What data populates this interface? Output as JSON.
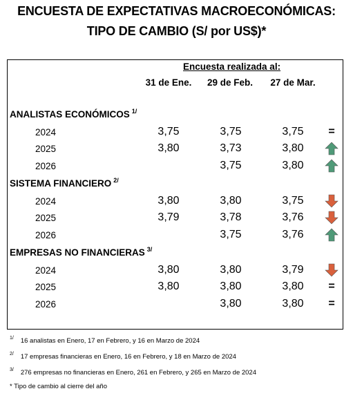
{
  "title_line1": "ENCUESTA DE EXPECTATIVAS MACROECONÓMICAS:",
  "title_line2": "TIPO DE CAMBIO (S/ por US$)*",
  "survey_header": "Encuesta realizada al:",
  "columns": [
    "31 de Ene.",
    "29 de Feb.",
    "27 de Mar."
  ],
  "sections": [
    {
      "name": "ANALISTAS ECONÓMICOS",
      "note": "1/",
      "rows": [
        {
          "year": "2024",
          "values": [
            "3,75",
            "3,75",
            "3,75"
          ],
          "trend": "equal",
          "trend_symbol": "="
        },
        {
          "year": "2025",
          "values": [
            "3,80",
            "3,73",
            "3,80"
          ],
          "trend": "up",
          "trend_symbol": ""
        },
        {
          "year": "2026",
          "values": [
            "",
            "3,75",
            "3,80"
          ],
          "trend": "up",
          "trend_symbol": ""
        }
      ]
    },
    {
      "name": "SISTEMA FINANCIERO",
      "note": "2/",
      "rows": [
        {
          "year": "2024",
          "values": [
            "3,80",
            "3,80",
            "3,75"
          ],
          "trend": "down",
          "trend_symbol": ""
        },
        {
          "year": "2025",
          "values": [
            "3,79",
            "3,78",
            "3,76"
          ],
          "trend": "down",
          "trend_symbol": ""
        },
        {
          "year": "2026",
          "values": [
            "",
            "3,75",
            "3,76"
          ],
          "trend": "up",
          "trend_symbol": ""
        }
      ]
    },
    {
      "name": "EMPRESAS NO FINANCIERAS",
      "note": "3/",
      "rows": [
        {
          "year": "2024",
          "values": [
            "3,80",
            "3,80",
            "3,79"
          ],
          "trend": "down",
          "trend_symbol": ""
        },
        {
          "year": "2025",
          "values": [
            "3,80",
            "3,80",
            "3,80"
          ],
          "trend": "equal",
          "trend_symbol": "="
        },
        {
          "year": "2026",
          "values": [
            "",
            "3,80",
            "3,80"
          ],
          "trend": "equal",
          "trend_symbol": "="
        }
      ]
    }
  ],
  "footnotes": [
    {
      "mark": "1/",
      "text": "16 analistas en Enero, 17 en Febrero, y 16 en Marzo de 2024"
    },
    {
      "mark": "2/",
      "text": "17 empresas financieras en Enero, 16 en Febrero, y 18 en Marzo de 2024"
    },
    {
      "mark": "3/",
      "text": "276 empresas no financieras en Enero, 261 en Febrero, y 265 en Marzo de 2024"
    }
  ],
  "asterisk_note": "* Tipo de cambio al cierre del año",
  "colors": {
    "up": "#4f9a78",
    "down": "#d9603c"
  }
}
